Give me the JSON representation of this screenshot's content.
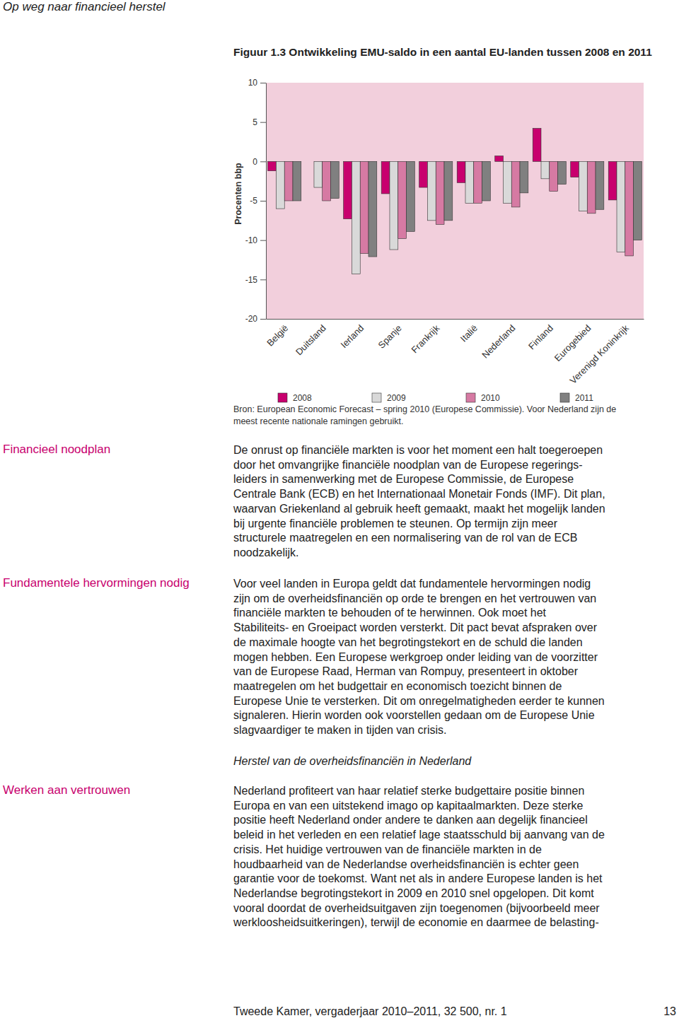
{
  "chart_data": {
    "type": "bar",
    "title": "Figuur 1.3 Ontwikkeling EMU-saldo in een aantal EU-landen tussen 2008 en 2011",
    "ylabel": "Procenten bbp",
    "categories": [
      "België",
      "Duitsland",
      "Ierland",
      "Spanje",
      "Frankrijk",
      "Italië",
      "Nederland",
      "Finland",
      "Eurogebied",
      "Verenigd Koninkrijk"
    ],
    "series": [
      {
        "name": "2008",
        "color": "#c8006e",
        "values": [
          -1.2,
          0.0,
          -7.3,
          -4.1,
          -3.3,
          -2.7,
          0.7,
          4.2,
          -2.0,
          -4.9
        ]
      },
      {
        "name": "2009",
        "color": "#d9d9d9",
        "values": [
          -6.0,
          -3.3,
          -14.3,
          -11.2,
          -7.5,
          -5.3,
          -5.3,
          -2.2,
          -6.3,
          -11.5
        ]
      },
      {
        "name": "2010",
        "color": "#d67aa3",
        "values": [
          -5.0,
          -5.0,
          -11.7,
          -9.8,
          -8.0,
          -5.3,
          -5.8,
          -3.8,
          -6.6,
          -12.0
        ]
      },
      {
        "name": "2011",
        "color": "#808080",
        "values": [
          -5.0,
          -4.7,
          -12.1,
          -8.9,
          -7.5,
          -5.0,
          -4.0,
          -2.9,
          -6.1,
          -10.0
        ]
      }
    ],
    "ylim": [
      -20,
      10
    ],
    "yticks": [
      -20,
      -15,
      -10,
      -5,
      0,
      5,
      10
    ],
    "legend": "bottom"
  },
  "page": {
    "header": "Op weg naar financieel herstel",
    "source": [
      "Bron: European Economic Forecast – spring 2010 (Europese Commissie). Voor Nederland zijn de",
      "meest recente nationale ramingen gebruikt."
    ],
    "sections": [
      {
        "heading": "Financieel noodplan",
        "lines": [
          "De onrust op financiële markten is voor het moment een halt toegeroepen",
          "door het omvangrijke financiële noodplan van de Europese regerings-",
          "leiders in samenwerking met de Europese Commissie, de Europese",
          "Centrale Bank (ECB) en het Internationaal Monetair Fonds (IMF). Dit plan,",
          "waarvan Griekenland al gebruik heeft gemaakt, maakt het mogelijk landen",
          "bij urgente financiële problemen te steunen. Op termijn zijn meer",
          "structurele maatregelen en een normalisering van de rol van de ECB",
          "noodzakelijk."
        ]
      },
      {
        "heading": "Fundamentele hervormingen nodig",
        "lines": [
          "Voor veel landen in Europa geldt dat fundamentele hervormingen nodig",
          "zijn om de overheidsfinanciën op orde te brengen en het vertrouwen van",
          "financiële markten te behouden of te herwinnen. Ook moet het",
          "Stabiliteits- en Groeipact worden versterkt. Dit pact bevat afspraken over",
          "de maximale hoogte van het begrotingstekort en de schuld die landen",
          "mogen hebben. Een Europese werkgroep onder leiding van de voorzitter",
          "van de Europese Raad, Herman van Rompuy, presenteert in oktober",
          "maatregelen om het budgettair en economisch toezicht binnen de",
          "Europese Unie te versterken. Dit om onregelmatigheden eerder te kunnen",
          "signaleren. Hierin worden ook voorstellen gedaan om de Europese Unie",
          "slagvaardiger te maken in tijden van crisis."
        ]
      },
      {
        "heading": "Werken aan vertrouwen",
        "lines": [
          "Nederland profiteert van haar relatief sterke budgettaire positie binnen",
          "Europa en van een uitstekend imago op kapitaalmarkten. Deze sterke",
          "positie heeft Nederland onder andere te danken aan degelijk financieel",
          "beleid in het verleden en een relatief lage staatsschuld bij aanvang van de",
          "crisis. Het huidige vertrouwen van de financiële markten in de",
          "houdbaarheid van de Nederlandse overheidsfinanciën is echter geen",
          "garantie voor de toekomst. Want net als in andere Europese landen is het",
          "Nederlandse begrotingstekort in 2009 en 2010 snel opgelopen. Dit komt",
          "vooral doordat de overheidsuitgaven zijn toegenomen (bijvoorbeeld meer",
          "werkloosheidsuitkeringen), terwijl de economie en daarmee de belasting-"
        ]
      }
    ],
    "subheading": "Herstel van de overheidsfinanciën in Nederland",
    "footer": "Tweede Kamer, vergaderjaar 2010–2011, 32 500, nr. 1",
    "page_number": "13"
  }
}
